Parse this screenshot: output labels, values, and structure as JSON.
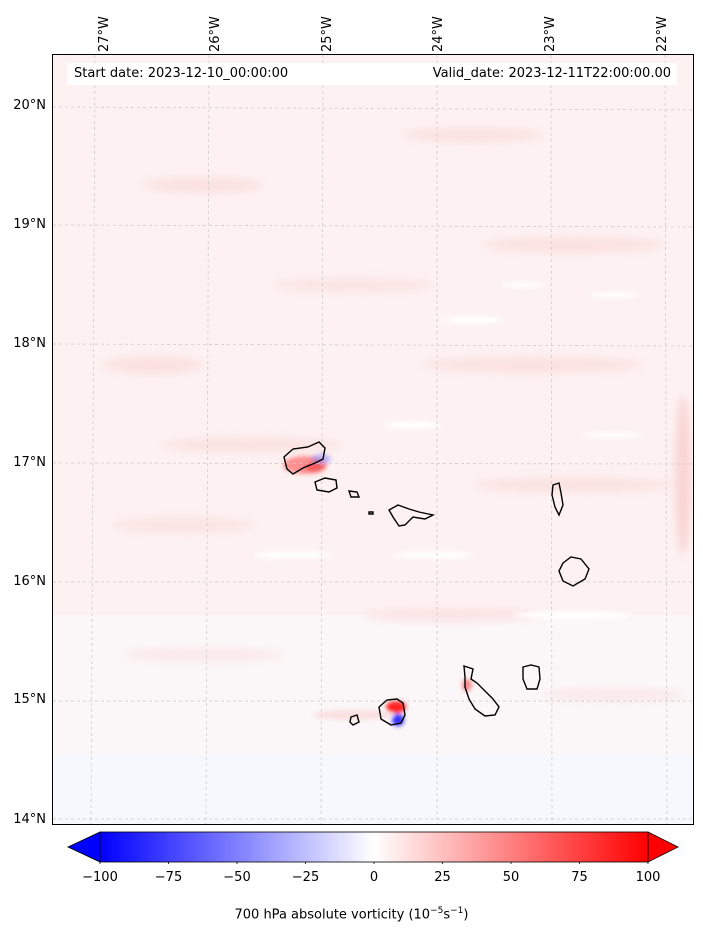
{
  "header": {
    "start_date": "Start date: 2023-12-10_00:00:00",
    "valid_date": "Valid_date: 2023-12-11T22:00:00.00"
  },
  "axes": {
    "longitude_labels": [
      "27°W",
      "26°W",
      "25°W",
      "24°W",
      "23°W",
      "22°W"
    ],
    "latitude_labels": [
      "20°N",
      "19°N",
      "18°N",
      "17°N",
      "16°N",
      "15°N",
      "14°N"
    ]
  },
  "colorbar": {
    "ticks": [
      "−100",
      "−75",
      "−50",
      "−25",
      "0",
      "25",
      "50",
      "75",
      "100"
    ],
    "label_prefix": "700 hPa absolute vorticity (10",
    "label_exp1": "−5",
    "label_mid": "s",
    "label_exp2": "−1",
    "label_suffix": ")",
    "colors": {
      "negative": "#0000ff",
      "zero": "#ffffff",
      "positive": "#ff0000"
    },
    "range": [
      -100,
      100
    ]
  },
  "map": {
    "background_color": "#fdf3f3",
    "coastline_color": "#000000",
    "islands": [
      "Santo Antão",
      "São Vicente",
      "Santa Luzia",
      "São Nicolau",
      "Sal",
      "Boa Vista",
      "Maio",
      "Santiago",
      "Fogo",
      "Brava"
    ]
  }
}
